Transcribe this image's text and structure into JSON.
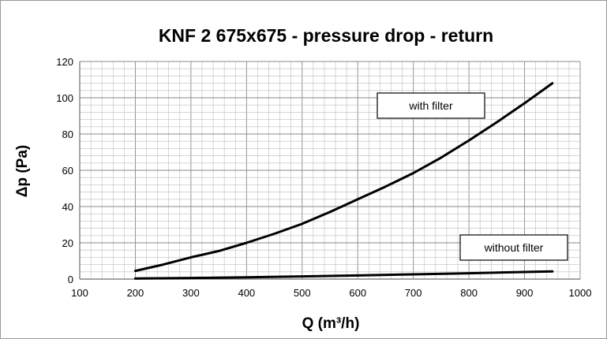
{
  "chart_data": {
    "type": "line",
    "title": "KNF 2 675x675 - pressure drop - return",
    "xlabel": "Q (m³/h)",
    "ylabel": "Δp (Pa)",
    "xlim": [
      100,
      1000
    ],
    "ylim": [
      0,
      120
    ],
    "x_ticks": [
      100,
      200,
      300,
      400,
      500,
      600,
      700,
      800,
      900,
      1000
    ],
    "y_ticks": [
      0,
      20,
      40,
      60,
      80,
      100,
      120
    ],
    "grid": true,
    "series": [
      {
        "name": "with filter",
        "x": [
          200,
          250,
          300,
          350,
          400,
          450,
          500,
          550,
          600,
          650,
          700,
          750,
          800,
          850,
          900,
          950
        ],
        "y": [
          4.5,
          8,
          12,
          15.5,
          20,
          25,
          30.5,
          37,
          44,
          51,
          58.5,
          67,
          76.5,
          86.5,
          97,
          108
        ]
      },
      {
        "name": "without filter",
        "x": [
          200,
          300,
          400,
          500,
          600,
          700,
          800,
          900,
          950
        ],
        "y": [
          0.3,
          0.6,
          1.0,
          1.5,
          2.0,
          2.6,
          3.2,
          3.9,
          4.2
        ]
      }
    ],
    "annotations": [
      "with filter",
      "without filter"
    ]
  }
}
